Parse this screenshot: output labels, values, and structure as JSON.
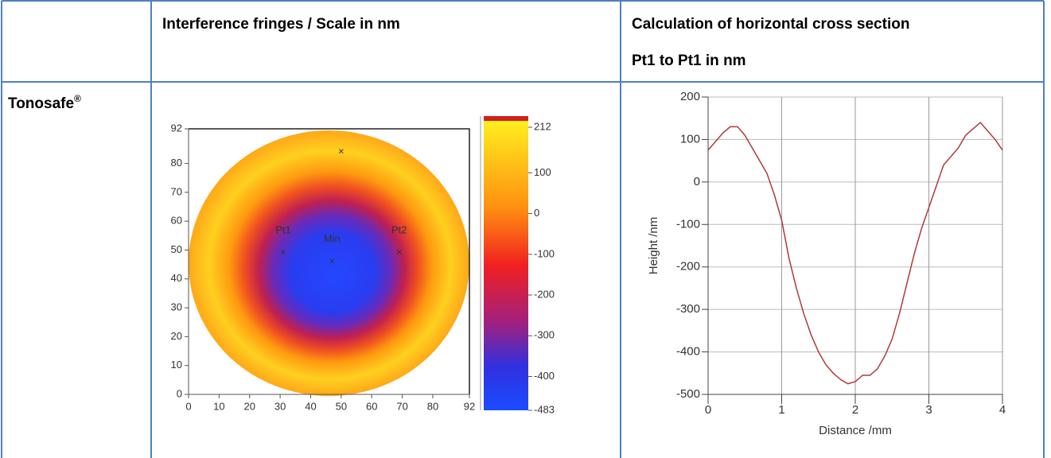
{
  "header": {
    "col2": "Interference fringes / Scale in nm",
    "col3": [
      "Calculation of horizontal cross section",
      "Pt1 to Pt1 in nm"
    ]
  },
  "row": {
    "label": "Tonosafe",
    "label_sup": "®"
  },
  "fringe_map": {
    "xlim": [
      0,
      92
    ],
    "ylim": [
      0,
      92
    ],
    "xticks": [
      0,
      10,
      20,
      30,
      40,
      50,
      60,
      70,
      80,
      92
    ],
    "yticks": [
      0,
      10,
      20,
      30,
      40,
      50,
      60,
      70,
      80,
      92
    ],
    "points": [
      {
        "label": "Pt1",
        "x": 31,
        "y": 49
      },
      {
        "label": "Min",
        "x": 47,
        "y": 46
      },
      {
        "label": "Pt2",
        "x": 69,
        "y": 49
      },
      {
        "x": 50,
        "y": 84
      }
    ],
    "colorbar": {
      "lim": [
        -483,
        212
      ],
      "ticks": [
        212,
        100,
        0,
        -100,
        -200,
        -300,
        -400,
        -483
      ]
    }
  },
  "cross_section": {
    "type": "line",
    "color": "#b03a3a",
    "grid": true,
    "xlabel": "Distance /mm",
    "ylabel": "Height /nm",
    "xlim": [
      0,
      4
    ],
    "ylim": [
      -500,
      200
    ],
    "xticks": [
      0,
      1,
      2,
      3,
      4
    ],
    "yticks": [
      200,
      100,
      0,
      -100,
      -200,
      -300,
      -400,
      -500
    ],
    "x": [
      0,
      0.1,
      0.2,
      0.3,
      0.4,
      0.5,
      0.6,
      0.7,
      0.8,
      0.9,
      1.0,
      1.1,
      1.2,
      1.3,
      1.4,
      1.5,
      1.6,
      1.7,
      1.8,
      1.9,
      2.0,
      2.1,
      2.2,
      2.3,
      2.4,
      2.5,
      2.6,
      2.7,
      2.8,
      2.9,
      3.0,
      3.1,
      3.2,
      3.3,
      3.4,
      3.5,
      3.6,
      3.7,
      3.8,
      3.9,
      4.0
    ],
    "values": [
      75,
      95,
      115,
      130,
      130,
      110,
      80,
      50,
      20,
      -30,
      -90,
      -180,
      -250,
      -310,
      -360,
      -400,
      -430,
      -450,
      -465,
      -475,
      -470,
      -455,
      -455,
      -440,
      -410,
      -370,
      -310,
      -240,
      -170,
      -110,
      -60,
      -10,
      40,
      60,
      80,
      110,
      125,
      140,
      120,
      100,
      75
    ]
  }
}
